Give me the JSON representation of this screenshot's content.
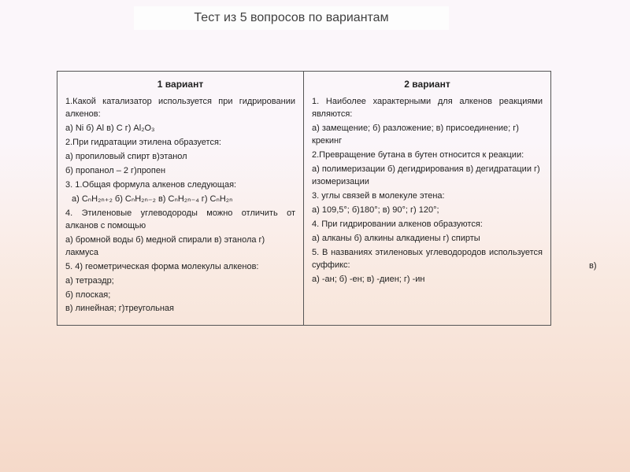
{
  "title": "Тест из 5 вопросов по вариантам",
  "stray": "в)",
  "v1": {
    "header": "1 вариант",
    "q1": "1.Какой катализатор используется при гидрировании алкенов:",
    "q1opts": "а) Ni    б) Al    в) C    г) Al₂O₃",
    "q2": "2.При гидратации этилена образуется:",
    "q2a": "а) пропиловый спирт    в)этанол",
    "q2b": "б) пропанол – 2            г)пропен",
    "q3": "3. 1.Общая формула алкенов следующая:",
    "q3opts": "а) CₙH₂ₙ₊₂       б) CₙH₂ₙ₋₂   в)  CₙH₂ₙ₋₄  г) CₙH₂ₙ",
    "q4": " 4. Этиленовые углеводороды можно отличить от алканов с помощью",
    "q4opts": "     а) бромной воды          б) медной спирали     в) этанола                    г) лакмуса",
    "q5": "5.   4)  геометрическая форма молекулы алкенов:",
    "q5a": " а) тетраэдр;",
    "q5b": "б) плоская;",
    "q5c": " в) линейная;         г)треугольная"
  },
  "v2": {
    "header": "2 вариант",
    "q1": "1. Наиболее характерными для алкенов реакциями являются:",
    "q1opts": "          а) замещение;              б) разложение;                                    в) присоединение;        г) крекинг",
    "q2": "2.Превращение бутана в бутен относится к реакции:",
    "q2opts": "  а) полимеризации            б) дегидрирования     в)   дегидратации             г) изомеризации",
    "q3": "3.   углы связей в молекуле этена:",
    "q3opts": "а) 109,5°;   б)180°;    в) 90°;    г) 120°;",
    "q4": "4.  При гидрировании алкенов образуются:",
    "q4opts": " а) алканы                       б) алкины    алкадиены                 г) спирты",
    "q5": " 5. В названиях этиленовых углеводородов используется суффикс:",
    "q5opts": " а) -ан;        б) -ен;       в) -диен;       г) -ин"
  }
}
